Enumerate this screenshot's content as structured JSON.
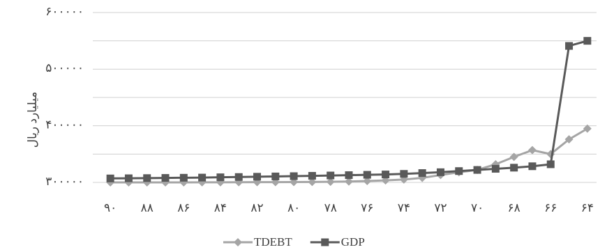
{
  "chart_data": {
    "type": "line",
    "y_label": "میلیارد ریال",
    "categories": [
      "۹۰",
      null,
      "۸۸",
      null,
      "۸۶",
      null,
      "۸۴",
      null,
      "۸۲",
      null,
      "۸۰",
      null,
      "۷۸",
      null,
      "۷۶",
      null,
      "۷۴",
      null,
      "۷۲",
      null,
      "۷۰",
      null,
      "۶۸",
      null,
      "۶۶",
      null,
      "۶۴"
    ],
    "series": [
      {
        "name": "TDEBT",
        "color": "#a5a5a5",
        "marker": "diamond",
        "values": [
          300000,
          300000,
          300000,
          300000,
          300000,
          300100,
          300200,
          300300,
          300400,
          300500,
          300600,
          300800,
          301000,
          301500,
          302500,
          303500,
          305000,
          308000,
          313000,
          318000,
          322000,
          332000,
          345000,
          357000,
          350000,
          376000,
          395000
        ]
      },
      {
        "name": "GDP",
        "color": "#595959",
        "marker": "square",
        "values": [
          307000,
          307300,
          307600,
          307900,
          308200,
          308500,
          309000,
          309500,
          310000,
          310500,
          311000,
          311600,
          312200,
          312800,
          313400,
          314000,
          315000,
          316500,
          318000,
          320000,
          322000,
          324000,
          326000,
          328500,
          332000,
          541000,
          550000
        ]
      }
    ],
    "ylim": [
      300000,
      600000
    ],
    "yticks": [
      {
        "value": 300000,
        "label": "۳۰۰۰۰۰"
      },
      {
        "value": 400000,
        "label": "۴۰۰۰۰۰"
      },
      {
        "value": 500000,
        "label": "۵۰۰۰۰۰"
      },
      {
        "value": 600000,
        "label": "۶۰۰۰۰۰"
      }
    ],
    "ygrid": [
      300000,
      350000,
      400000,
      450000,
      500000,
      550000,
      600000
    ],
    "legend": "bottom"
  }
}
